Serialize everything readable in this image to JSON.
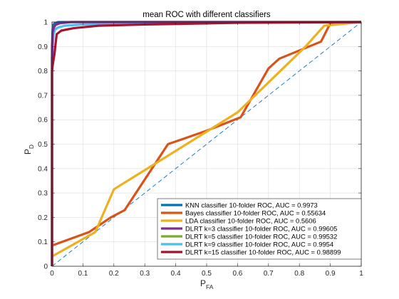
{
  "chart_data": {
    "type": "line",
    "title": "mean ROC with different classifiers",
    "xlabel": {
      "main": "P",
      "sub": "FA"
    },
    "ylabel": {
      "main": "P",
      "sub": "D"
    },
    "xlim": [
      0,
      1
    ],
    "ylim": [
      0,
      1
    ],
    "xticks": [
      "0",
      "0.1",
      "0.2",
      "0.3",
      "0.4",
      "0.5",
      "0.6",
      "0.7",
      "0.8",
      "0.9",
      "1"
    ],
    "yticks": [
      "0",
      "0.1",
      "0.2",
      "0.3",
      "0.4",
      "0.5",
      "0.6",
      "0.7",
      "0.8",
      "0.9",
      "1"
    ],
    "grid": true,
    "legend_position": "bottom-right",
    "chance_line": {
      "x": [
        0,
        1
      ],
      "y": [
        0,
        1
      ],
      "color": "#0072BD",
      "style": "dashed"
    },
    "series": [
      {
        "name": "KNN classifier 10-folder ROC, AUC = 0.9973",
        "color": "#0072BD",
        "x": [
          0,
          0,
          0.002,
          0.005,
          0.01,
          0.02,
          0.05,
          0.1,
          1
        ],
        "y": [
          0,
          0.9,
          0.97,
          0.99,
          0.996,
          1,
          1,
          1,
          1
        ]
      },
      {
        "name": "Bayes classifier 10-folder ROC, AUC = 0.55634",
        "color": "#D95319",
        "x": [
          0,
          0,
          0.12,
          0.19,
          0.235,
          0.375,
          0.5,
          0.61,
          0.7,
          0.735,
          0.87,
          0.9,
          1
        ],
        "y": [
          0,
          0.085,
          0.14,
          0.2,
          0.23,
          0.5,
          0.555,
          0.61,
          0.81,
          0.85,
          0.92,
          0.995,
          1
        ]
      },
      {
        "name": "LDA classifier 10-folder ROC, AUC = 0.5606",
        "color": "#EDB120",
        "x": [
          0,
          0,
          0.14,
          0.2,
          0.6,
          0.82,
          0.88,
          0.92,
          1
        ],
        "y": [
          0,
          0.04,
          0.14,
          0.315,
          0.63,
          0.9,
          0.985,
          0.99,
          1
        ]
      },
      {
        "name": "DLRT k=3 classifier 10-folder ROC, AUC = 0.99605",
        "color": "#7E2F8E",
        "x": [
          0,
          0,
          0.002,
          0.006,
          0.012,
          0.025,
          0.06,
          0.15,
          1
        ],
        "y": [
          0,
          0.85,
          0.955,
          0.98,
          0.99,
          0.995,
          1,
          1,
          1
        ]
      },
      {
        "name": "DLRT k=5 classifier 10-folder ROC, AUC = 0.99532",
        "color": "#77AC30",
        "x": [
          0,
          0,
          0.002,
          0.006,
          0.012,
          0.025,
          0.06,
          0.15,
          1
        ],
        "y": [
          0,
          0.86,
          0.95,
          0.975,
          0.988,
          0.995,
          1,
          1,
          1
        ]
      },
      {
        "name": "DLRT k=9 classifier 10-folder ROC, AUC = 0.9954",
        "color": "#4DBEEE",
        "x": [
          0,
          0,
          0.002,
          0.005,
          0.01,
          0.02,
          0.04,
          0.1,
          0.3,
          1
        ],
        "y": [
          0,
          0.85,
          0.9,
          0.95,
          0.97,
          0.978,
          0.985,
          0.99,
          0.997,
          1
        ]
      },
      {
        "name": "DLRT k=15 classifier 10-folder ROC, AUC = 0.98899",
        "color": "#A2142F",
        "x": [
          0,
          0,
          0.003,
          0.008,
          0.015,
          0.03,
          0.07,
          0.15,
          0.3,
          0.6,
          1
        ],
        "y": [
          0,
          0.8,
          0.83,
          0.87,
          0.95,
          0.965,
          0.975,
          0.985,
          0.99,
          0.997,
          1
        ]
      }
    ]
  }
}
